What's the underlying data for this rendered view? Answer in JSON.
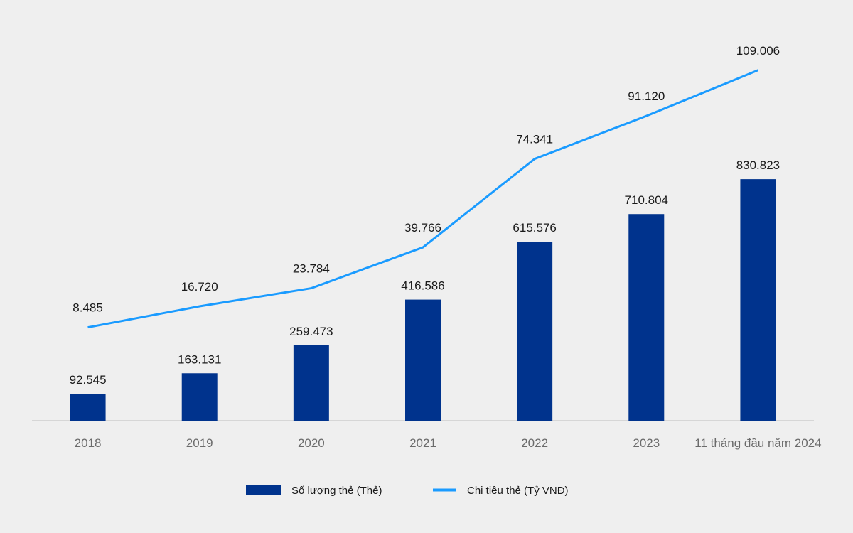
{
  "chart_data": {
    "type": "bar+line",
    "categories": [
      "2018",
      "2019",
      "2020",
      "2021",
      "2022",
      "2023",
      "11 tháng đầu năm 2024"
    ],
    "series": [
      {
        "name": "Số lượng thẻ (Thẻ)",
        "type": "bar",
        "axis": "primary",
        "color": "#00338d",
        "values": [
          92545,
          163131,
          259473,
          416586,
          615576,
          710804,
          830823
        ],
        "labels": [
          "92.545",
          "163.131",
          "259.473",
          "416.586",
          "615.576",
          "710.804",
          "830.823"
        ]
      },
      {
        "name": "Chi tiêu thẻ (Tỷ VNĐ)",
        "type": "line",
        "axis": "secondary",
        "color": "#1a9bff",
        "values": [
          8485,
          16720,
          23784,
          39766,
          74341,
          91120,
          109006
        ],
        "labels": [
          "8.485",
          "16.720",
          "23.784",
          "39.766",
          "74.341",
          "91.120",
          "109.006"
        ]
      }
    ],
    "ylim": [
      0,
      1320000
    ],
    "y2lim": [
      -28000,
      122000
    ],
    "grid": false,
    "legend": "bottom",
    "background": "#efefef"
  }
}
